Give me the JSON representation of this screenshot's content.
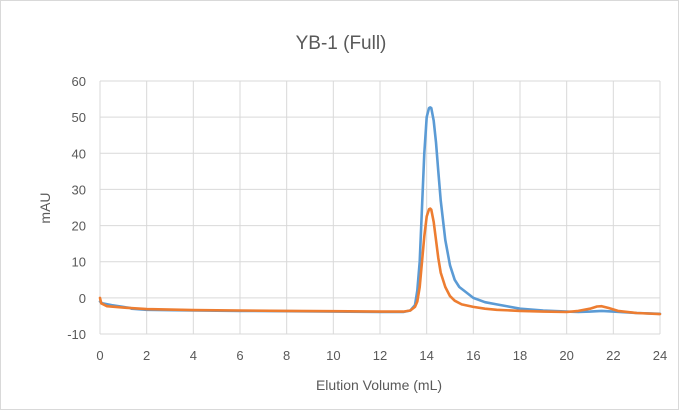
{
  "chart_data": {
    "type": "line",
    "title": "YB-1 (Full)",
    "xlabel": "Elution Volume (mL)",
    "ylabel": "mAU",
    "xlim": [
      0,
      24
    ],
    "ylim": [
      -10,
      60
    ],
    "x_ticks": [
      0,
      2,
      4,
      6,
      8,
      10,
      12,
      14,
      16,
      18,
      20,
      22,
      24
    ],
    "y_ticks": [
      -10,
      0,
      10,
      20,
      30,
      40,
      50,
      60
    ],
    "grid": true,
    "legend": "none",
    "series": [
      {
        "color": "#5b9bd5",
        "x": [
          0,
          0.1,
          0.5,
          1.0,
          1.3,
          1.35,
          2,
          4,
          6,
          8,
          10,
          12,
          13.0,
          13.3,
          13.5,
          13.6,
          13.7,
          13.8,
          13.9,
          14.0,
          14.1,
          14.15,
          14.2,
          14.3,
          14.4,
          14.5,
          14.6,
          14.8,
          15.0,
          15.2,
          15.4,
          15.6,
          16.0,
          16.5,
          17.0,
          17.5,
          18.0,
          19.0,
          20.0,
          20.5,
          21.0,
          21.5,
          22.0,
          23.0,
          24.0
        ],
        "y": [
          -1,
          -1.5,
          -2,
          -2.5,
          -2.8,
          -3,
          -3.3,
          -3.5,
          -3.6,
          -3.7,
          -3.8,
          -3.9,
          -3.9,
          -3.5,
          -2,
          2,
          10,
          25,
          40,
          50,
          52.5,
          52.7,
          52.5,
          49,
          43,
          35,
          27,
          16,
          9,
          5,
          3,
          2,
          0,
          -1.2,
          -1.8,
          -2.4,
          -3.0,
          -3.5,
          -3.8,
          -3.9,
          -3.8,
          -3.6,
          -3.8,
          -4.2,
          -4.4
        ]
      },
      {
        "color": "#ed7d31",
        "x": [
          0,
          0.05,
          0.3,
          1.0,
          2,
          4,
          6,
          8,
          10,
          12,
          13.0,
          13.3,
          13.5,
          13.6,
          13.7,
          13.8,
          13.9,
          14.0,
          14.1,
          14.15,
          14.2,
          14.3,
          14.4,
          14.5,
          14.6,
          14.8,
          15.0,
          15.2,
          15.5,
          16.0,
          16.5,
          17.0,
          18.0,
          19.0,
          20.0,
          20.5,
          21.0,
          21.3,
          21.5,
          21.8,
          22.2,
          23.0,
          24.0
        ],
        "y": [
          0,
          -1.5,
          -2.3,
          -2.7,
          -3.1,
          -3.4,
          -3.5,
          -3.6,
          -3.7,
          -3.8,
          -3.8,
          -3.5,
          -2.5,
          -1,
          3,
          10,
          17,
          22.5,
          24.5,
          24.7,
          24.4,
          21,
          16,
          11,
          7,
          3,
          0.5,
          -0.8,
          -1.8,
          -2.5,
          -3.0,
          -3.3,
          -3.6,
          -3.8,
          -3.9,
          -3.6,
          -3.0,
          -2.4,
          -2.3,
          -2.8,
          -3.6,
          -4.2,
          -4.5
        ]
      }
    ]
  }
}
